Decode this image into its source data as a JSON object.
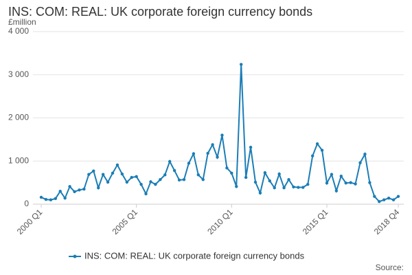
{
  "chart_data": {
    "type": "line",
    "title": "INS: COM: REAL: UK corporate foreign currency bonds",
    "y_label": "£million",
    "source": "Source:",
    "categories": [
      "2000 Q1",
      null,
      null,
      null,
      null,
      null,
      null,
      null,
      null,
      null,
      null,
      null,
      null,
      null,
      null,
      null,
      null,
      null,
      null,
      null,
      "2005 Q1",
      null,
      null,
      null,
      null,
      null,
      null,
      null,
      null,
      null,
      null,
      null,
      null,
      null,
      null,
      null,
      null,
      null,
      null,
      null,
      "2010 Q1",
      null,
      null,
      null,
      null,
      null,
      null,
      null,
      null,
      null,
      null,
      null,
      null,
      null,
      null,
      null,
      null,
      null,
      null,
      null,
      "2015 Q1",
      null,
      null,
      null,
      null,
      null,
      null,
      null,
      null,
      null,
      null,
      null,
      null,
      null,
      null,
      "2018 Q4"
    ],
    "series": [
      {
        "name": "INS: COM: REAL: UK corporate foreign currency bonds",
        "color": "#1a7db6",
        "values": [
          160,
          110,
          100,
          130,
          300,
          140,
          410,
          290,
          330,
          350,
          690,
          770,
          380,
          690,
          510,
          720,
          910,
          700,
          510,
          620,
          640,
          460,
          240,
          520,
          460,
          570,
          680,
          990,
          780,
          560,
          570,
          950,
          1170,
          680,
          570,
          1180,
          1380,
          1090,
          1600,
          840,
          720,
          410,
          3240,
          620,
          1320,
          510,
          260,
          730,
          540,
          380,
          700,
          380,
          570,
          400,
          390,
          390,
          460,
          1120,
          1400,
          1250,
          490,
          690,
          310,
          650,
          490,
          500,
          470,
          960,
          1160,
          500,
          180,
          60,
          100,
          140,
          100,
          180
        ]
      }
    ],
    "ylim": [
      0,
      4000
    ],
    "yticks": [
      0,
      {
        "value": 1000,
        "label": "1 000"
      },
      {
        "value": 2000,
        "label": "2 000"
      },
      {
        "value": 3000,
        "label": "3 000"
      },
      {
        "value": 4000,
        "label": "4 000"
      }
    ],
    "grid": true
  }
}
